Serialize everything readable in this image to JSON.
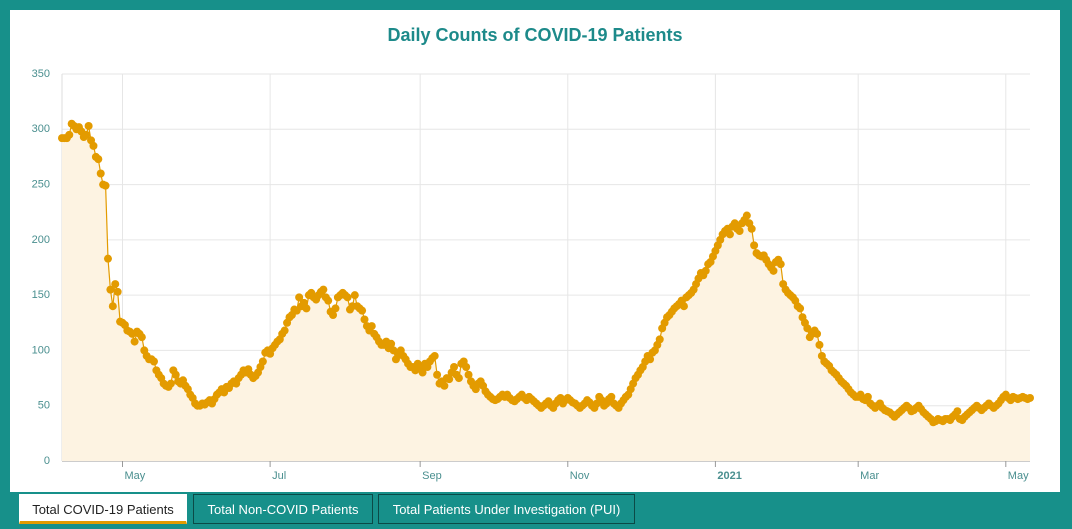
{
  "chart_data": {
    "type": "line",
    "title": "Daily Counts of COVID-19 Patients",
    "color": "#e39b00",
    "area_color": "#fdf3e2",
    "grid": true,
    "ylim": [
      0,
      350
    ],
    "yticks": [
      0,
      50,
      100,
      150,
      200,
      250,
      300,
      350
    ],
    "xlim": [
      0,
      400
    ],
    "xticks": [
      {
        "value": 25,
        "label": "May"
      },
      {
        "value": 86,
        "label": "Jul"
      },
      {
        "value": 148,
        "label": "Sep"
      },
      {
        "value": 209,
        "label": "Nov"
      },
      {
        "value": 270,
        "label": "2021"
      },
      {
        "value": 329,
        "label": "Mar"
      },
      {
        "value": 390,
        "label": "May"
      }
    ],
    "values": [
      292,
      292,
      292,
      295,
      305,
      303,
      300,
      302,
      298,
      293,
      295,
      303,
      290,
      285,
      275,
      273,
      260,
      250,
      249,
      183,
      155,
      140,
      160,
      153,
      126,
      125,
      123,
      118,
      117,
      115,
      108,
      117,
      115,
      112,
      100,
      95,
      92,
      92,
      90,
      82,
      78,
      75,
      70,
      68,
      67,
      70,
      82,
      78,
      72,
      70,
      73,
      68,
      65,
      60,
      57,
      52,
      50,
      50,
      52,
      51,
      53,
      55,
      52,
      56,
      60,
      62,
      65,
      62,
      67,
      66,
      70,
      72,
      70,
      75,
      78,
      82,
      80,
      83,
      78,
      75,
      77,
      80,
      85,
      90,
      98,
      100,
      97,
      102,
      105,
      108,
      110,
      115,
      118,
      125,
      130,
      132,
      137,
      136,
      148,
      140,
      143,
      138,
      150,
      152,
      148,
      146,
      150,
      153,
      155,
      148,
      145,
      135,
      132,
      138,
      148,
      150,
      152,
      150,
      148,
      137,
      140,
      150,
      140,
      138,
      136,
      128,
      122,
      118,
      122,
      115,
      112,
      108,
      105,
      105,
      108,
      102,
      106,
      100,
      92,
      96,
      100,
      95,
      92,
      88,
      85,
      85,
      82,
      88,
      85,
      80,
      88,
      85,
      90,
      93,
      95,
      78,
      70,
      72,
      68,
      75,
      74,
      80,
      85,
      78,
      75,
      88,
      90,
      85,
      78,
      72,
      68,
      65,
      70,
      72,
      68,
      63,
      60,
      58,
      56,
      55,
      56,
      58,
      60,
      58,
      60,
      57,
      55,
      54,
      56,
      58,
      60,
      57,
      55,
      58,
      56,
      54,
      52,
      50,
      48,
      50,
      52,
      54,
      50,
      48,
      52,
      55,
      57,
      52,
      55,
      57,
      55,
      53,
      52,
      50,
      48,
      50,
      52,
      55,
      53,
      50,
      48,
      52,
      58,
      55,
      50,
      52,
      56,
      58,
      52,
      50,
      48,
      52,
      55,
      58,
      60,
      65,
      70,
      75,
      78,
      82,
      85,
      90,
      95,
      92,
      98,
      100,
      105,
      110,
      120,
      125,
      130,
      132,
      135,
      138,
      140,
      142,
      145,
      140,
      148,
      150,
      152,
      155,
      160,
      165,
      170,
      168,
      172,
      178,
      180,
      185,
      190,
      195,
      200,
      205,
      208,
      210,
      205,
      212,
      215,
      210,
      208,
      215,
      218,
      222,
      215,
      210,
      195,
      188,
      186,
      185,
      186,
      182,
      178,
      175,
      172,
      180,
      182,
      178,
      160,
      155,
      152,
      150,
      148,
      145,
      140,
      138,
      130,
      125,
      120,
      112,
      115,
      118,
      115,
      105,
      95,
      90,
      88,
      86,
      82,
      80,
      78,
      75,
      72,
      70,
      68,
      65,
      62,
      60,
      58,
      58,
      60,
      56,
      55,
      58,
      52,
      50,
      48,
      50,
      52,
      48,
      46,
      45,
      44,
      42,
      40,
      42,
      44,
      46,
      48,
      50,
      48,
      45,
      46,
      48,
      50,
      47,
      44,
      42,
      40,
      38,
      35,
      36,
      38,
      37,
      36,
      38,
      38,
      37,
      40,
      42,
      45,
      38,
      37,
      40,
      42,
      44,
      46,
      48,
      50,
      48,
      46,
      48,
      50,
      52,
      50,
      48,
      50,
      52,
      55,
      58,
      60,
      57,
      55,
      58,
      57,
      56,
      57,
      58,
      57,
      56,
      57
    ]
  },
  "tabs": [
    "Total COVID-19 Patients",
    "Total Non-COVID Patients",
    "Total Patients Under Investigation (PUI)"
  ]
}
